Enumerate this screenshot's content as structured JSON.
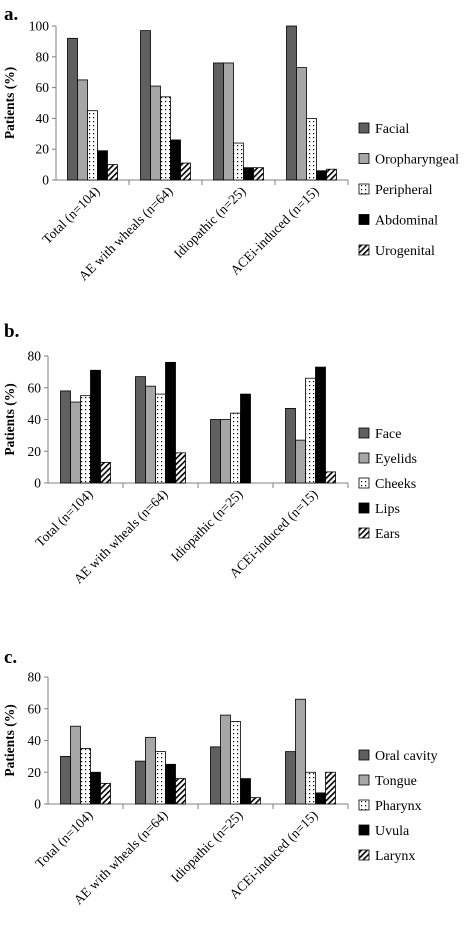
{
  "chart_data": [
    {
      "type": "bar",
      "panel_label": "a.",
      "ylabel": "Patients (%)",
      "ylim": [
        0,
        100
      ],
      "yticks": [
        0,
        20,
        40,
        60,
        80,
        100
      ],
      "grid": false,
      "legend_position": "right",
      "categories": [
        "Total (n=104)",
        "AE with wheals (n=64)",
        "Idiopathic (n=25)",
        "ACEi-induced (n=15)"
      ],
      "series": [
        {
          "name": "Facial",
          "fill": "dark",
          "values": [
            92,
            97,
            76,
            100
          ]
        },
        {
          "name": "Oropharyngeal",
          "fill": "light",
          "values": [
            65,
            61,
            76,
            73
          ]
        },
        {
          "name": "Peripheral",
          "fill": "dots",
          "values": [
            45,
            54,
            24,
            40
          ]
        },
        {
          "name": "Abdominal",
          "fill": "black",
          "values": [
            19,
            26,
            8,
            6
          ]
        },
        {
          "name": "Urogenital",
          "fill": "hatch",
          "values": [
            10,
            11,
            8,
            7
          ]
        }
      ]
    },
    {
      "type": "bar",
      "panel_label": "b.",
      "ylabel": "Patients (%)",
      "ylim": [
        0,
        80
      ],
      "yticks": [
        0,
        20,
        40,
        60,
        80
      ],
      "grid": false,
      "legend_position": "right",
      "categories": [
        "Total (n=104)",
        "AE with wheals (n=64)",
        "Idiopathic (n=25)",
        "ACEi-induced (n=15)"
      ],
      "series": [
        {
          "name": "Face",
          "fill": "dark",
          "values": [
            58,
            67,
            40,
            47
          ]
        },
        {
          "name": "Eyelids",
          "fill": "light",
          "values": [
            51,
            61,
            40,
            27
          ]
        },
        {
          "name": "Cheeks",
          "fill": "dots",
          "values": [
            55,
            56,
            44,
            66
          ]
        },
        {
          "name": "Lips",
          "fill": "black",
          "values": [
            71,
            76,
            56,
            73
          ]
        },
        {
          "name": "Ears",
          "fill": "hatch",
          "values": [
            13,
            19,
            0,
            7
          ]
        }
      ]
    },
    {
      "type": "bar",
      "panel_label": "c.",
      "ylabel": "Patients (%)",
      "ylim": [
        0,
        80
      ],
      "yticks": [
        0,
        20,
        40,
        60,
        80
      ],
      "grid": false,
      "legend_position": "right",
      "categories": [
        "Total (n=104)",
        "AE with wheals (n=64)",
        "Idiopathic (n=25)",
        "ACEi-induced (n=15)"
      ],
      "series": [
        {
          "name": "Oral cavity",
          "fill": "dark",
          "values": [
            30,
            27,
            36,
            33
          ]
        },
        {
          "name": "Tongue",
          "fill": "light",
          "values": [
            49,
            42,
            56,
            66
          ]
        },
        {
          "name": "Pharynx",
          "fill": "dots",
          "values": [
            35,
            33,
            52,
            20
          ]
        },
        {
          "name": "Uvula",
          "fill": "black",
          "values": [
            20,
            25,
            16,
            7
          ]
        },
        {
          "name": "Larynx",
          "fill": "hatch",
          "values": [
            13,
            16,
            4,
            20
          ]
        }
      ]
    }
  ],
  "colors": {
    "dark": "#606060",
    "light": "#a6a6a6",
    "dots": "#ffffff",
    "black": "#000000",
    "hatch": "#ffffff",
    "axis": "#808080"
  }
}
